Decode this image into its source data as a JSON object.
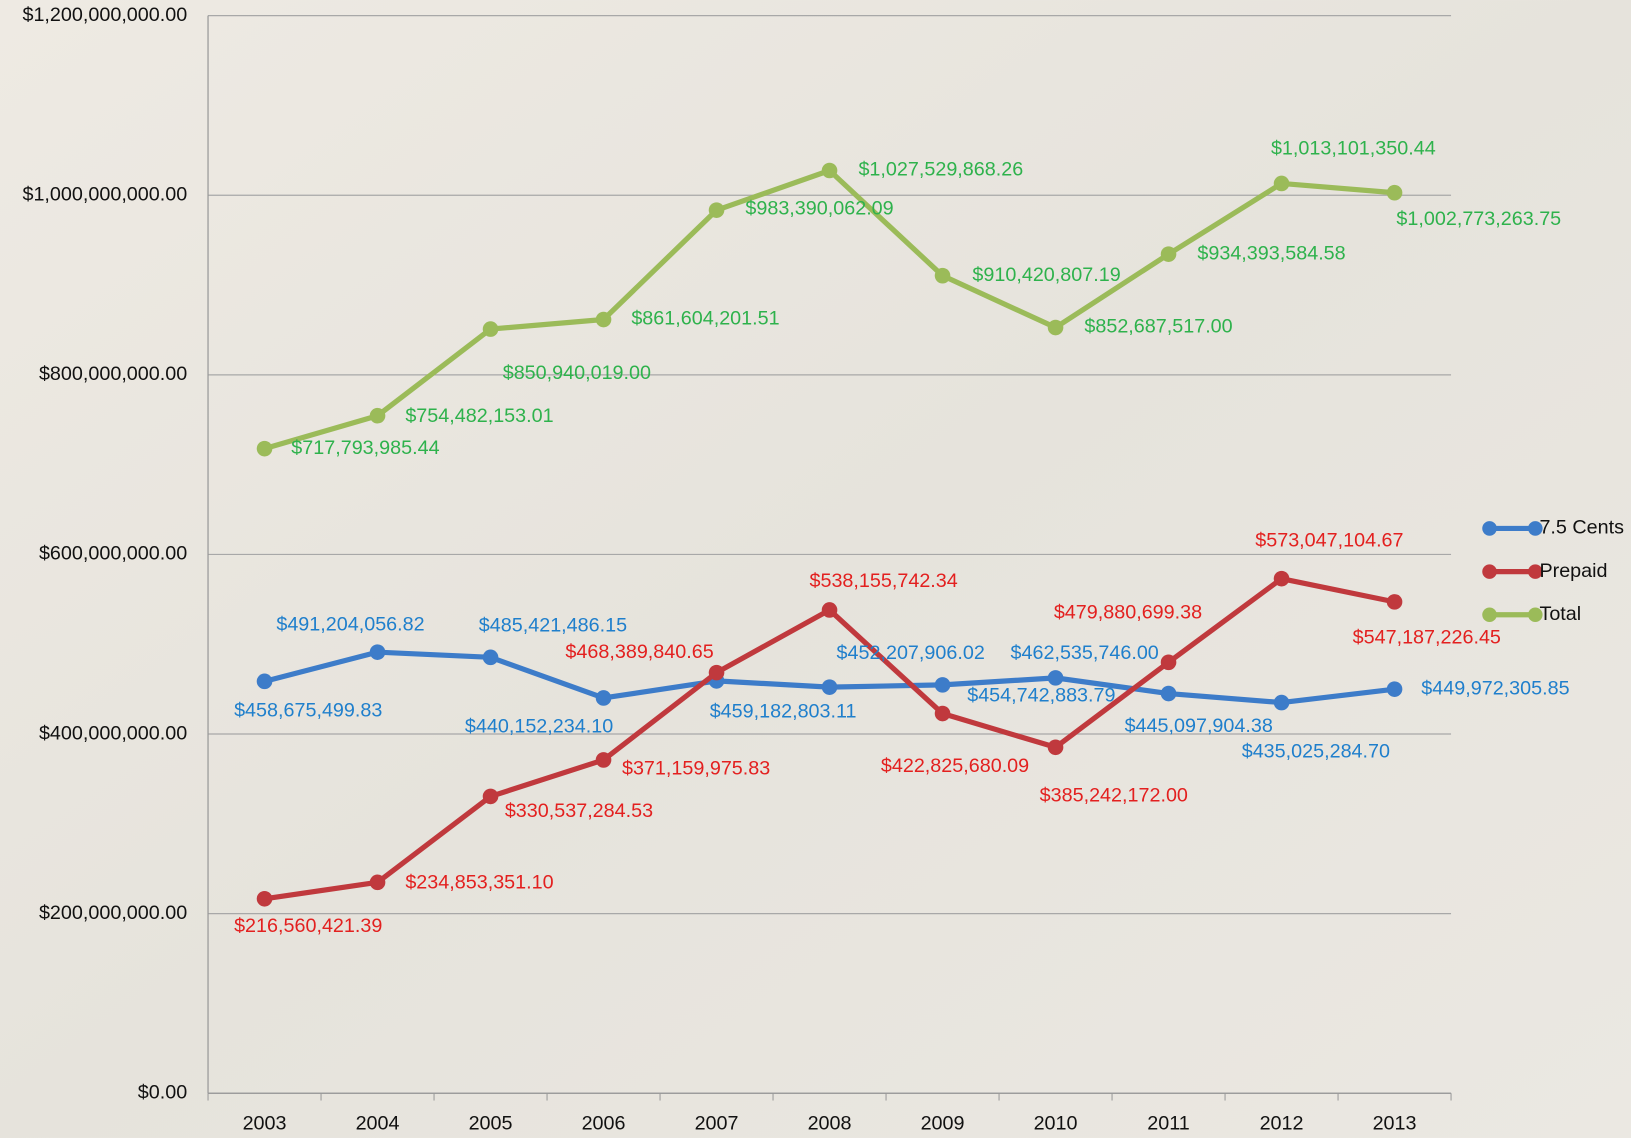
{
  "chart_data": {
    "type": "line",
    "categories": [
      "2003",
      "2004",
      "2005",
      "2006",
      "2007",
      "2008",
      "2009",
      "2010",
      "2011",
      "2012",
      "2013"
    ],
    "series": [
      {
        "name": "7.5 Cents",
        "color": "#3d7cc9",
        "label_color": "#1f7fcc",
        "values": [
          458675499.83,
          491204056.82,
          485421486.15,
          440152234.1,
          459182803.11,
          452207906.02,
          454742883.79,
          462535746.0,
          445097904.38,
          435025284.7,
          449972305.85
        ],
        "value_labels": [
          "$458,675,499.83",
          "$491,204,056.82",
          "$485,421,486.15",
          "$440,152,234.10",
          "$459,182,803.11",
          "$452,207,906.02",
          "$454,742,883.79",
          "$462,535,746.00",
          "$445,097,904.38",
          "$435,025,284.70",
          "$449,972,305.85"
        ]
      },
      {
        "name": "Prepaid",
        "color": "#c0393d",
        "label_color": "#e3201f",
        "values": [
          216560421.39,
          234853351.1,
          330537284.53,
          371159975.83,
          468389840.65,
          538155742.34,
          422825680.09,
          385242172.0,
          479880699.38,
          573047104.67,
          547187226.45
        ],
        "value_labels": [
          "$216,560,421.39",
          "$234,853,351.10",
          "$330,537,284.53",
          "$371,159,975.83",
          "$468,389,840.65",
          "$538,155,742.34",
          "$422,825,680.09",
          "$385,242,172.00",
          "$479,880,699.38",
          "$573,047,104.67",
          "$547,187,226.45"
        ]
      },
      {
        "name": "Total",
        "color": "#9bbb59",
        "label_color": "#2eb24c",
        "values": [
          717793985.44,
          754482153.01,
          850940019.0,
          861604201.51,
          983390062.09,
          1027529868.26,
          910420807.19,
          852687517.0,
          934393584.58,
          1013101350.44,
          1002773263.75
        ],
        "value_labels": [
          "$717,793,985.44",
          "$754,482,153.01",
          "$850,940,019.00",
          "$861,604,201.51",
          "$983,390,062.09",
          "$1,027,529,868.26",
          "$910,420,807.19",
          "$852,687,517.00",
          "$934,393,584.58",
          "$1,013,101,350.44",
          "$1,002,773,263.75"
        ]
      }
    ],
    "ylim": [
      0,
      1200000000
    ],
    "yticks": [
      {
        "value": 0,
        "label": "$0.00"
      },
      {
        "value": 200000000,
        "label": "$200,000,000.00"
      },
      {
        "value": 400000000,
        "label": "$400,000,000.00"
      },
      {
        "value": 600000000,
        "label": "$600,000,000.00"
      },
      {
        "value": 800000000,
        "label": "$800,000,000.00"
      },
      {
        "value": 1000000000,
        "label": "$1,000,000,000.00"
      },
      {
        "value": 1200000000,
        "label": "$1,200,000,000.00"
      }
    ],
    "grid": true,
    "legend": "right"
  }
}
